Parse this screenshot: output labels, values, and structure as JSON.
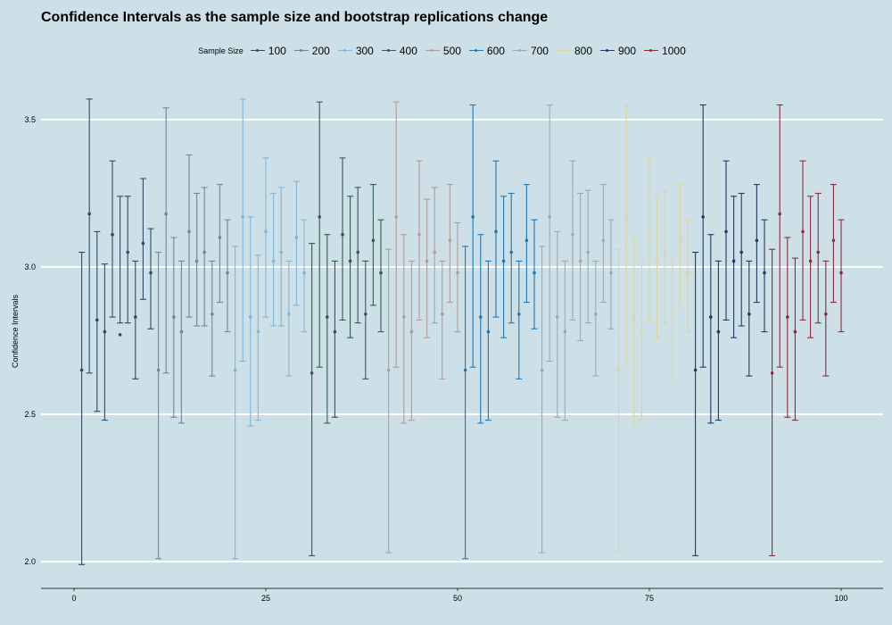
{
  "chart_data": {
    "type": "errorbar",
    "title": "Confidence Intervals as the sample size and bootstrap replications change",
    "xlabel": "",
    "ylabel": "Confidence Intervals",
    "xlim": [
      -4,
      105
    ],
    "ylim": [
      1.9,
      3.72
    ],
    "x_ticks": [
      0,
      25,
      50,
      75,
      100
    ],
    "y_ticks": [
      2.0,
      2.5,
      3.0,
      3.5
    ],
    "grid": "horizontal major",
    "legend": {
      "title": "Sample Size",
      "position": "top"
    },
    "series": [
      {
        "name": "100",
        "color": "#2e4a63",
        "x": [
          1,
          2,
          3,
          4,
          5,
          6,
          7,
          8,
          9,
          10
        ],
        "estimate": [
          2.65,
          3.18,
          2.82,
          2.78,
          3.11,
          2.77,
          3.05,
          2.83,
          3.08,
          2.98
        ],
        "lower": [
          1.99,
          2.64,
          2.51,
          2.48,
          2.83,
          2.81,
          2.81,
          2.62,
          2.89,
          2.79
        ],
        "upper": [
          3.05,
          3.57,
          3.12,
          3.01,
          3.36,
          3.24,
          3.24,
          3.02,
          3.3,
          3.13
        ]
      },
      {
        "name": "200",
        "color": "#6f8796",
        "x": [
          11,
          12,
          13,
          14,
          15,
          16,
          17,
          18,
          19,
          20
        ],
        "estimate": [
          2.65,
          3.18,
          2.83,
          2.78,
          3.12,
          3.02,
          3.05,
          2.84,
          3.1,
          2.98
        ],
        "lower": [
          2.01,
          2.64,
          2.49,
          2.47,
          2.83,
          2.8,
          2.8,
          2.63,
          2.88,
          2.78
        ],
        "upper": [
          3.05,
          3.54,
          3.1,
          3.02,
          3.38,
          3.25,
          3.27,
          3.02,
          3.28,
          3.16
        ]
      },
      {
        "name": "300",
        "color": "#7eb6dc",
        "x": [
          21,
          22,
          23,
          24,
          25,
          26,
          27,
          28,
          29,
          30
        ],
        "estimate": [
          2.65,
          3.17,
          2.83,
          2.78,
          3.12,
          3.02,
          3.05,
          2.84,
          3.1,
          2.98
        ],
        "lower": [
          2.01,
          2.68,
          2.46,
          2.48,
          2.83,
          2.8,
          2.8,
          2.63,
          2.87,
          2.78
        ],
        "upper": [
          3.07,
          3.57,
          3.17,
          3.04,
          3.37,
          3.25,
          3.27,
          3.02,
          3.29,
          3.16
        ]
      },
      {
        "name": "400",
        "color": "#2f5b4f",
        "x": [
          31,
          32,
          33,
          34,
          35,
          36,
          37,
          38,
          39,
          40
        ],
        "estimate": [
          2.64,
          3.17,
          2.83,
          2.78,
          3.11,
          3.02,
          3.05,
          2.84,
          3.09,
          2.98
        ],
        "lower": [
          2.02,
          2.66,
          2.47,
          2.49,
          2.82,
          2.76,
          2.81,
          2.62,
          2.87,
          2.78
        ],
        "upper": [
          3.08,
          3.56,
          3.11,
          3.02,
          3.37,
          3.24,
          3.27,
          3.02,
          3.28,
          3.16
        ]
      },
      {
        "name": "500",
        "color": "#b09c9a",
        "x": [
          41,
          42,
          43,
          44,
          45,
          46,
          47,
          48,
          49,
          50
        ],
        "estimate": [
          2.65,
          3.17,
          2.83,
          2.78,
          3.11,
          3.02,
          3.05,
          2.84,
          3.09,
          2.98
        ],
        "lower": [
          2.03,
          2.66,
          2.47,
          2.48,
          2.82,
          2.76,
          2.81,
          2.62,
          2.88,
          2.78
        ],
        "upper": [
          3.06,
          3.56,
          3.11,
          3.02,
          3.36,
          3.23,
          3.27,
          3.02,
          3.28,
          3.15
        ]
      },
      {
        "name": "600",
        "color": "#1f77b4",
        "x": [
          51,
          52,
          53,
          54,
          55,
          56,
          57,
          58,
          59,
          60
        ],
        "estimate": [
          2.65,
          3.17,
          2.83,
          2.78,
          3.12,
          3.02,
          3.05,
          2.84,
          3.09,
          2.98
        ],
        "lower": [
          2.01,
          2.66,
          2.47,
          2.48,
          2.83,
          2.76,
          2.81,
          2.62,
          2.88,
          2.79
        ],
        "upper": [
          3.07,
          3.55,
          3.11,
          3.02,
          3.36,
          3.24,
          3.25,
          3.02,
          3.28,
          3.16
        ]
      },
      {
        "name": "700",
        "color": "#99aab0",
        "x": [
          61,
          62,
          63,
          64,
          65,
          66,
          67,
          68,
          69,
          70
        ],
        "estimate": [
          2.65,
          3.17,
          2.83,
          2.78,
          3.11,
          3.02,
          3.05,
          2.84,
          3.09,
          2.98
        ],
        "lower": [
          2.03,
          2.68,
          2.49,
          2.48,
          2.82,
          2.75,
          2.81,
          2.63,
          2.88,
          2.79
        ],
        "upper": [
          3.07,
          3.55,
          3.12,
          3.02,
          3.36,
          3.25,
          3.26,
          3.02,
          3.28,
          3.16
        ]
      },
      {
        "name": "800",
        "color": "#dcd69a",
        "x": [
          71,
          72,
          73,
          74,
          75,
          76,
          77,
          78,
          79,
          80
        ],
        "estimate": [
          2.65,
          3.17,
          2.83,
          2.78,
          3.12,
          3.02,
          3.05,
          2.84,
          3.09,
          2.98
        ],
        "lower": [
          2.03,
          2.67,
          2.46,
          2.48,
          2.82,
          2.76,
          2.81,
          2.63,
          2.87,
          2.78
        ],
        "upper": [
          3.06,
          3.55,
          3.1,
          3.01,
          3.37,
          3.24,
          3.26,
          3.02,
          3.28,
          3.16
        ]
      },
      {
        "name": "900",
        "color": "#1e3a5f",
        "x": [
          81,
          82,
          83,
          84,
          85,
          86,
          87,
          88,
          89,
          90
        ],
        "estimate": [
          2.65,
          3.17,
          2.83,
          2.78,
          3.12,
          3.02,
          3.05,
          2.84,
          3.09,
          2.98
        ],
        "lower": [
          2.02,
          2.66,
          2.47,
          2.48,
          2.82,
          2.76,
          2.8,
          2.63,
          2.88,
          2.78
        ],
        "upper": [
          3.05,
          3.55,
          3.11,
          3.02,
          3.36,
          3.24,
          3.25,
          3.02,
          3.28,
          3.16
        ]
      },
      {
        "name": "1000",
        "color": "#8b2a3c",
        "x": [
          91,
          92,
          93,
          94,
          95,
          96,
          97,
          98,
          99,
          100
        ],
        "estimate": [
          2.64,
          3.18,
          2.83,
          2.78,
          3.12,
          3.02,
          3.05,
          2.84,
          3.09,
          2.98
        ],
        "lower": [
          2.02,
          2.66,
          2.49,
          2.48,
          2.82,
          2.76,
          2.81,
          2.63,
          2.88,
          2.78
        ],
        "upper": [
          3.06,
          3.55,
          3.1,
          3.03,
          3.36,
          3.24,
          3.25,
          3.02,
          3.28,
          3.16
        ]
      }
    ]
  }
}
